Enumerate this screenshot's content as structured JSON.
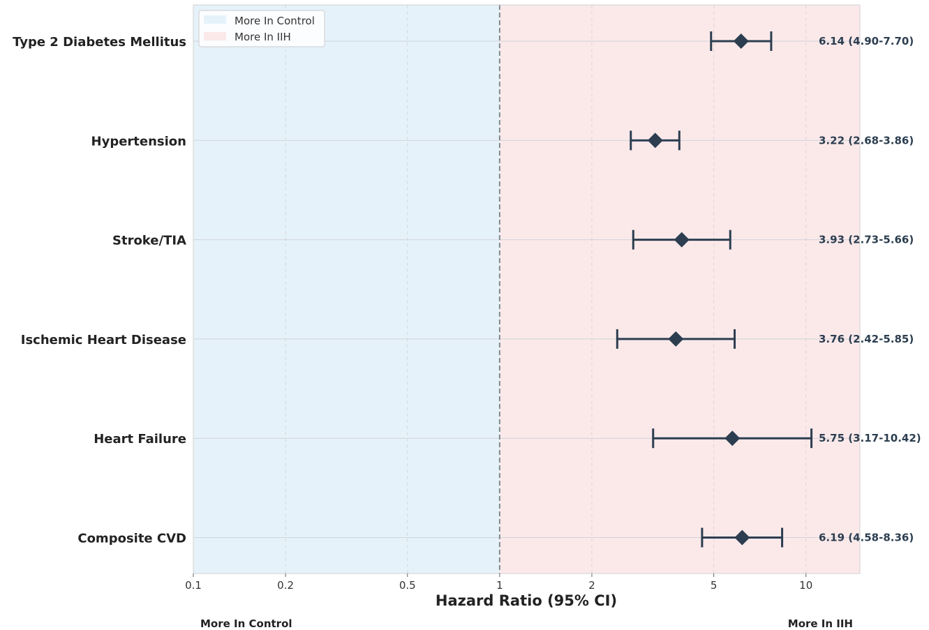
{
  "chart_data": {
    "type": "forest",
    "xlabel": "Hazard Ratio (95% CI)",
    "x_scale": "log",
    "xlim": [
      0.1,
      15
    ],
    "xticks": [
      0.1,
      0.2,
      0.5,
      1,
      2,
      5,
      10
    ],
    "xtick_labels": [
      "0.1",
      "0.2",
      "0.5",
      "1",
      "2",
      "5",
      "10"
    ],
    "reference_line": 1,
    "grid": true,
    "legend_position": "top-left",
    "legend": [
      {
        "label": "More In Control",
        "color": "#e6f2fa"
      },
      {
        "label": "More In IIH",
        "color": "#fbe9ea"
      }
    ],
    "side_labels": {
      "left": "More In Control",
      "right": "More In IIH"
    },
    "marker_color": "#2c3e50",
    "rows": [
      {
        "label": "Type 2 Diabetes Mellitus",
        "hr": 6.14,
        "lo": 4.9,
        "hi": 7.7,
        "annotation": "6.14 (4.90-7.70)"
      },
      {
        "label": "Hypertension",
        "hr": 3.22,
        "lo": 2.68,
        "hi": 3.86,
        "annotation": "3.22 (2.68-3.86)"
      },
      {
        "label": "Stroke/TIA",
        "hr": 3.93,
        "lo": 2.73,
        "hi": 5.66,
        "annotation": "3.93 (2.73-5.66)"
      },
      {
        "label": "Ischemic Heart Disease",
        "hr": 3.76,
        "lo": 2.42,
        "hi": 5.85,
        "annotation": "3.76 (2.42-5.85)"
      },
      {
        "label": "Heart Failure",
        "hr": 5.75,
        "lo": 3.17,
        "hi": 10.42,
        "annotation": "5.75 (3.17-10.42)"
      },
      {
        "label": "Composite CVD",
        "hr": 6.19,
        "lo": 4.58,
        "hi": 8.36,
        "annotation": "6.19 (4.58-8.36)"
      }
    ]
  }
}
